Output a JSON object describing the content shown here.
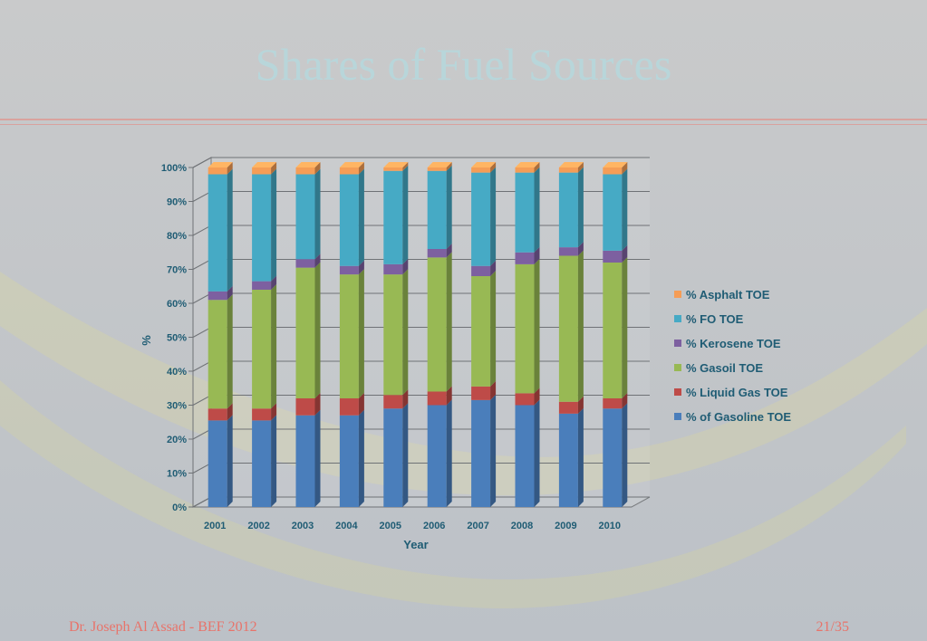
{
  "slide": {
    "title": "Shares of Fuel Sources",
    "footer_left": "Dr. Joseph Al Assad - BEF 2012",
    "footer_right": "21/35"
  },
  "chart_data": {
    "type": "bar",
    "stacked": true,
    "three_d": true,
    "title": "",
    "xlabel": "Year",
    "ylabel": "%",
    "ylim": [
      0,
      100
    ],
    "y_ticks": [
      "0%",
      "10%",
      "20%",
      "30%",
      "40%",
      "50%",
      "60%",
      "70%",
      "80%",
      "90%",
      "100%"
    ],
    "grid": true,
    "legend_position": "right",
    "categories": [
      "2001",
      "2002",
      "2003",
      "2004",
      "2005",
      "2006",
      "2007",
      "2008",
      "2009",
      "2010"
    ],
    "series": [
      {
        "name": "% of Gasoline TOE",
        "color": "#4a7ebb",
        "values": [
          25.5,
          25.5,
          27,
          27,
          29,
          30,
          31.5,
          30,
          27.5,
          29
        ]
      },
      {
        "name": "% Liquid Gas TOE",
        "color": "#be4b48",
        "values": [
          3.5,
          3.5,
          5,
          5,
          4,
          4,
          4,
          3.5,
          3.5,
          3
        ]
      },
      {
        "name": "% Gasoil TOE",
        "color": "#98b954",
        "values": [
          32,
          35,
          38.5,
          36.5,
          35.5,
          39.5,
          32.5,
          38,
          43,
          40
        ]
      },
      {
        "name": "% Kerosene TOE",
        "color": "#7d60a0",
        "values": [
          2.5,
          2.5,
          2.5,
          2.5,
          3,
          2.5,
          3,
          3.5,
          2.5,
          3.5
        ]
      },
      {
        "name": "% FO TOE",
        "color": "#46aac5",
        "values": [
          34.5,
          31.5,
          25,
          27,
          27.5,
          23,
          27.5,
          23.5,
          22,
          22.5
        ]
      },
      {
        "name": "% Asphalt TOE",
        "color": "#f59d56",
        "values": [
          2,
          2,
          2,
          2,
          1,
          1,
          1.5,
          1.5,
          1.5,
          2
        ]
      }
    ]
  }
}
